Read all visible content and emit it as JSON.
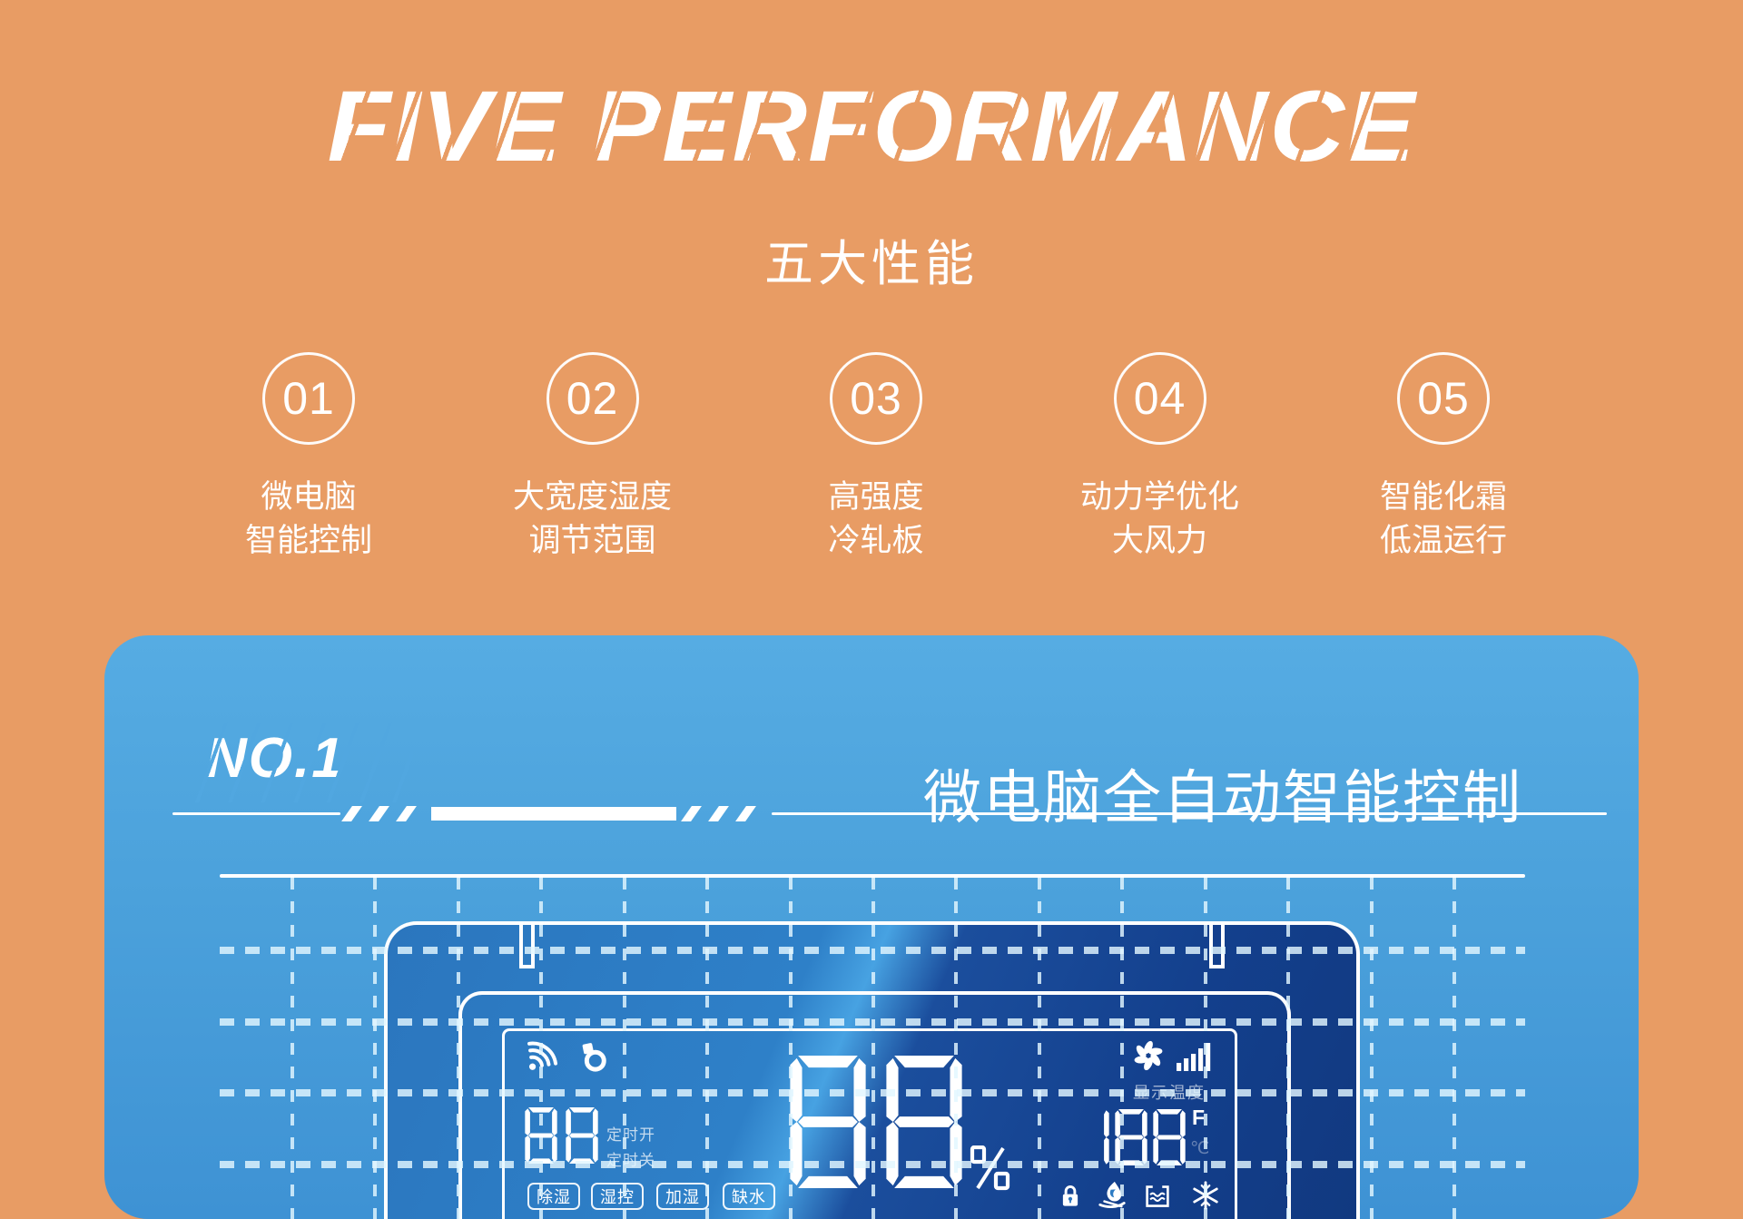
{
  "page": {
    "bg_color": "#E89C64",
    "accent_blue": "#4BA1DB"
  },
  "header": {
    "title": "FIVE PERFORMANCE",
    "subtitle": "五大性能",
    "features": [
      {
        "num": "01",
        "line1": "微电脑",
        "line2": "智能控制"
      },
      {
        "num": "02",
        "line1": "大宽度湿度",
        "line2": "调节范围"
      },
      {
        "num": "03",
        "line1": "高强度",
        "line2": "冷轧板"
      },
      {
        "num": "04",
        "line1": "动力学优化",
        "line2": "大风力"
      },
      {
        "num": "05",
        "line1": "智能化霜",
        "line2": "低温运行"
      }
    ]
  },
  "section": {
    "badge": "NO.1",
    "heading": "微电脑全自动智能控制",
    "panel": {
      "display": {
        "timer_value": "88",
        "timer_on_label": "定时开",
        "timer_off_label": "定时关",
        "mode_labels": [
          "除湿",
          "湿控",
          "加湿",
          "缺水"
        ],
        "humidity_value": "88",
        "percent_symbol": "%",
        "temp_caption": "显示温度",
        "temperature_value": "188",
        "unit_fahrenheit": "F",
        "unit_celsius": "℃",
        "icon_names": [
          "wifi-icon",
          "smart-app-icon",
          "fan-icon",
          "signal-bars-icon",
          "lock-icon",
          "flame-icon",
          "water-tank-icon",
          "snowflake-icon"
        ]
      }
    }
  }
}
